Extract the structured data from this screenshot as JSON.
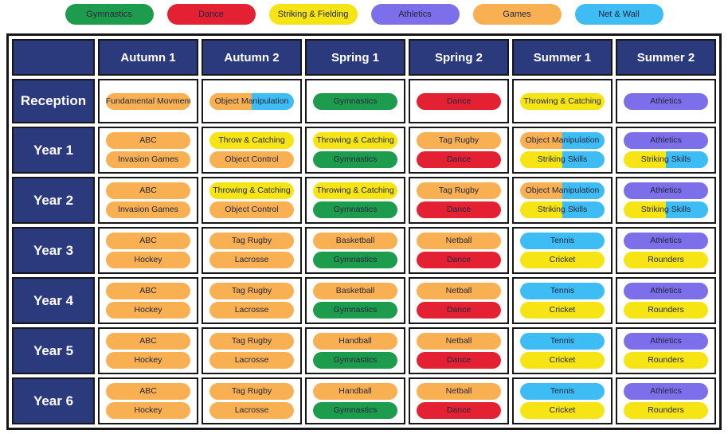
{
  "palette": {
    "gymnastics": "#1e9c4d",
    "dance": "#e32133",
    "striking_fielding": "#f6e414",
    "athletics": "#7c6fe9",
    "games": "#f9b052",
    "net_wall": "#3ebcf4",
    "header_navy": "#2b3a7d",
    "border_dark": "#161616",
    "header_text": "#ffffff",
    "pill_text": "#22263c"
  },
  "legend": {
    "items": [
      {
        "label": "Gymnastics",
        "color": "gymnastics"
      },
      {
        "label": "Dance",
        "color": "dance"
      },
      {
        "label": "Striking & Fielding",
        "color": "striking_fielding"
      },
      {
        "label": "Athletics",
        "color": "athletics"
      },
      {
        "label": "Games",
        "color": "games"
      },
      {
        "label": "Net & Wall",
        "color": "net_wall"
      }
    ]
  },
  "table": {
    "columns": [
      "Autumn 1",
      "Autumn 2",
      "Spring 1",
      "Spring 2",
      "Summer 1",
      "Summer 2"
    ],
    "rows": [
      {
        "label": "Reception",
        "cells": [
          [
            {
              "label": "Fundamental Movments",
              "colors": [
                "games"
              ]
            }
          ],
          [
            {
              "label": "Object Manipulation",
              "colors": [
                "games",
                "net_wall"
              ]
            }
          ],
          [
            {
              "label": "Gymnastics",
              "colors": [
                "gymnastics"
              ]
            }
          ],
          [
            {
              "label": "Dance",
              "colors": [
                "dance"
              ]
            }
          ],
          [
            {
              "label": "Throwing & Catching",
              "colors": [
                "striking_fielding"
              ]
            }
          ],
          [
            {
              "label": "Athletics",
              "colors": [
                "athletics"
              ]
            }
          ]
        ]
      },
      {
        "label": "Year 1",
        "cells": [
          [
            {
              "label": "ABC",
              "colors": [
                "games"
              ]
            },
            {
              "label": "Invasion Games",
              "colors": [
                "games"
              ]
            }
          ],
          [
            {
              "label": "Throw & Catching",
              "colors": [
                "striking_fielding"
              ]
            },
            {
              "label": "Object Control",
              "colors": [
                "games"
              ]
            }
          ],
          [
            {
              "label": "Throwing & Catching",
              "colors": [
                "striking_fielding"
              ]
            },
            {
              "label": "Gymnastics",
              "colors": [
                "gymnastics"
              ]
            }
          ],
          [
            {
              "label": "Tag Rugby",
              "colors": [
                "games"
              ]
            },
            {
              "label": "Dance",
              "colors": [
                "dance"
              ]
            }
          ],
          [
            {
              "label": "Object Manipulation",
              "colors": [
                "games",
                "net_wall"
              ]
            },
            {
              "label": "Striking Skills",
              "colors": [
                "striking_fielding",
                "net_wall"
              ]
            }
          ],
          [
            {
              "label": "Athletics",
              "colors": [
                "athletics"
              ]
            },
            {
              "label": "Striking Skills",
              "colors": [
                "striking_fielding",
                "net_wall"
              ]
            }
          ]
        ]
      },
      {
        "label": "Year 2",
        "cells": [
          [
            {
              "label": "ABC",
              "colors": [
                "games"
              ]
            },
            {
              "label": "Invasion Games",
              "colors": [
                "games"
              ]
            }
          ],
          [
            {
              "label": "Throwing & Catching",
              "colors": [
                "striking_fielding"
              ]
            },
            {
              "label": "Object Control",
              "colors": [
                "games"
              ]
            }
          ],
          [
            {
              "label": "Throwing & Catching",
              "colors": [
                "striking_fielding"
              ]
            },
            {
              "label": "Gymnastics",
              "colors": [
                "gymnastics"
              ]
            }
          ],
          [
            {
              "label": "Tag Rugby",
              "colors": [
                "games"
              ]
            },
            {
              "label": "Dance",
              "colors": [
                "dance"
              ]
            }
          ],
          [
            {
              "label": "Object Manipulation",
              "colors": [
                "games",
                "net_wall"
              ]
            },
            {
              "label": "Striking Skills",
              "colors": [
                "striking_fielding",
                "net_wall"
              ]
            }
          ],
          [
            {
              "label": "Athletics",
              "colors": [
                "athletics"
              ]
            },
            {
              "label": "Striking Skills",
              "colors": [
                "striking_fielding",
                "net_wall"
              ]
            }
          ]
        ]
      },
      {
        "label": "Year 3",
        "cells": [
          [
            {
              "label": "ABC",
              "colors": [
                "games"
              ]
            },
            {
              "label": "Hockey",
              "colors": [
                "games"
              ]
            }
          ],
          [
            {
              "label": "Tag Rugby",
              "colors": [
                "games"
              ]
            },
            {
              "label": "Lacrosse",
              "colors": [
                "games"
              ]
            }
          ],
          [
            {
              "label": "Basketball",
              "colors": [
                "games"
              ]
            },
            {
              "label": "Gymnastics",
              "colors": [
                "gymnastics"
              ]
            }
          ],
          [
            {
              "label": "Netball",
              "colors": [
                "games"
              ]
            },
            {
              "label": "Dance",
              "colors": [
                "dance"
              ]
            }
          ],
          [
            {
              "label": "Tennis",
              "colors": [
                "net_wall"
              ]
            },
            {
              "label": "Cricket",
              "colors": [
                "striking_fielding"
              ]
            }
          ],
          [
            {
              "label": "Athletics",
              "colors": [
                "athletics"
              ]
            },
            {
              "label": "Rounders",
              "colors": [
                "striking_fielding"
              ]
            }
          ]
        ]
      },
      {
        "label": "Year 4",
        "cells": [
          [
            {
              "label": "ABC",
              "colors": [
                "games"
              ]
            },
            {
              "label": "Hockey",
              "colors": [
                "games"
              ]
            }
          ],
          [
            {
              "label": "Tag Rugby",
              "colors": [
                "games"
              ]
            },
            {
              "label": "Lacrosse",
              "colors": [
                "games"
              ]
            }
          ],
          [
            {
              "label": "Basketball",
              "colors": [
                "games"
              ]
            },
            {
              "label": "Gymnastics",
              "colors": [
                "gymnastics"
              ]
            }
          ],
          [
            {
              "label": "Netball",
              "colors": [
                "games"
              ]
            },
            {
              "label": "Dance",
              "colors": [
                "dance"
              ]
            }
          ],
          [
            {
              "label": "Tennis",
              "colors": [
                "net_wall"
              ]
            },
            {
              "label": "Cricket",
              "colors": [
                "striking_fielding"
              ]
            }
          ],
          [
            {
              "label": "Athletics",
              "colors": [
                "athletics"
              ]
            },
            {
              "label": "Rounders",
              "colors": [
                "striking_fielding"
              ]
            }
          ]
        ]
      },
      {
        "label": "Year 5",
        "cells": [
          [
            {
              "label": "ABC",
              "colors": [
                "games"
              ]
            },
            {
              "label": "Hockey",
              "colors": [
                "games"
              ]
            }
          ],
          [
            {
              "label": "Tag Rugby",
              "colors": [
                "games"
              ]
            },
            {
              "label": "Lacrosse",
              "colors": [
                "games"
              ]
            }
          ],
          [
            {
              "label": "Handball",
              "colors": [
                "games"
              ]
            },
            {
              "label": "Gymnastics",
              "colors": [
                "gymnastics"
              ]
            }
          ],
          [
            {
              "label": "Netball",
              "colors": [
                "games"
              ]
            },
            {
              "label": "Dance",
              "colors": [
                "dance"
              ]
            }
          ],
          [
            {
              "label": "Tennis",
              "colors": [
                "net_wall"
              ]
            },
            {
              "label": "Cricket",
              "colors": [
                "striking_fielding"
              ]
            }
          ],
          [
            {
              "label": "Athletics",
              "colors": [
                "athletics"
              ]
            },
            {
              "label": "Rounders",
              "colors": [
                "striking_fielding"
              ]
            }
          ]
        ]
      },
      {
        "label": "Year 6",
        "cells": [
          [
            {
              "label": "ABC",
              "colors": [
                "games"
              ]
            },
            {
              "label": "Hockey",
              "colors": [
                "games"
              ]
            }
          ],
          [
            {
              "label": "Tag Rugby",
              "colors": [
                "games"
              ]
            },
            {
              "label": "Lacrosse",
              "colors": [
                "games"
              ]
            }
          ],
          [
            {
              "label": "Handball",
              "colors": [
                "games"
              ]
            },
            {
              "label": "Gymnastics",
              "colors": [
                "gymnastics"
              ]
            }
          ],
          [
            {
              "label": "Netball",
              "colors": [
                "games"
              ]
            },
            {
              "label": "Dance",
              "colors": [
                "dance"
              ]
            }
          ],
          [
            {
              "label": "Tennis",
              "colors": [
                "net_wall"
              ]
            },
            {
              "label": "Cricket",
              "colors": [
                "striking_fielding"
              ]
            }
          ],
          [
            {
              "label": "Athletics",
              "colors": [
                "athletics"
              ]
            },
            {
              "label": "Rounders",
              "colors": [
                "striking_fielding"
              ]
            }
          ]
        ]
      }
    ]
  }
}
